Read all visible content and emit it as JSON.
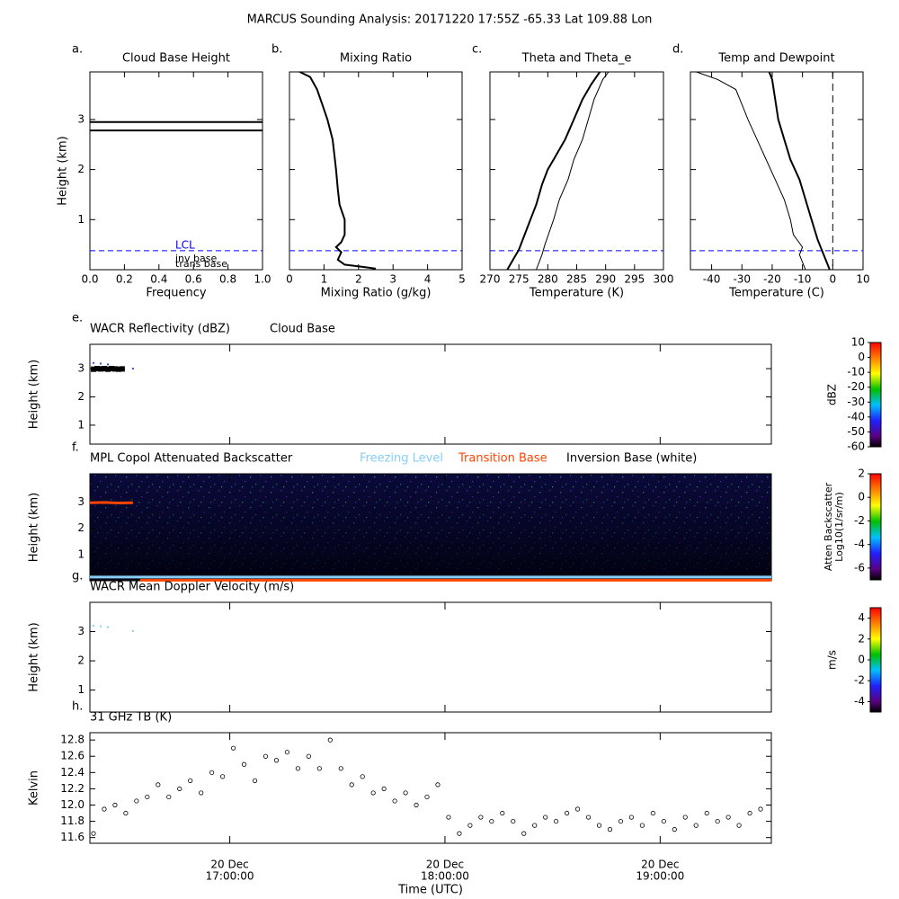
{
  "title": "MARCUS Sounding Analysis: 20171220 17:55Z   -65.33 Lat  109.88 Lon",
  "chart_data": [
    {
      "type": "hlines",
      "label": "a.",
      "title": "Cloud Base Height",
      "xlabel": "Frequency",
      "ylabel": "Height (km)",
      "xlim": [
        0,
        1
      ],
      "xticks": [
        {
          "value": 0,
          "label": "0.0"
        },
        0.2,
        0.4,
        0.6,
        0.8,
        {
          "value": 1,
          "label": "1.0"
        }
      ],
      "ylim": [
        0,
        3.95
      ],
      "yticks": [
        1,
        2,
        3
      ],
      "cloud_base_heights": [
        2.78,
        2.95
      ],
      "lcl": {
        "label": "LCL",
        "value": 0.38,
        "color": "#0000ff"
      },
      "annotations": [
        "inv base",
        "trans base"
      ]
    },
    {
      "type": "profile",
      "label": "b.",
      "title": "Mixing Ratio",
      "xlabel": "Mixing Ratio (g/kg)",
      "xlim": [
        0,
        5
      ],
      "xticks": [
        0,
        1,
        2,
        3,
        4,
        5
      ],
      "ylim": [
        0,
        3.95
      ],
      "yticks": [
        1,
        2,
        3
      ],
      "lcl": {
        "value": 0.38,
        "color": "#0000ff"
      },
      "series": [
        {
          "color": "#000000",
          "width": 2,
          "x": [
            2.5,
            2.2,
            1.6,
            1.4,
            1.5,
            1.35,
            1.5,
            1.6,
            1.6,
            1.45,
            1.4,
            1.35,
            1.3,
            1.25,
            1.1,
            0.95,
            0.8,
            0.6,
            0.3
          ],
          "y": [
            0.02,
            0.05,
            0.1,
            0.2,
            0.35,
            0.45,
            0.55,
            0.7,
            1.0,
            1.3,
            1.6,
            2.0,
            2.3,
            2.6,
            3.0,
            3.3,
            3.6,
            3.85,
            3.95
          ]
        }
      ]
    },
    {
      "type": "profile",
      "label": "c.",
      "title": "Theta and Theta_e",
      "xlabel": "Temperature (K)",
      "xlim": [
        270,
        300
      ],
      "xticks": [
        270,
        275,
        280,
        285,
        290,
        295,
        300
      ],
      "ylim": [
        0,
        3.95
      ],
      "yticks": [
        1,
        2,
        3
      ],
      "lcl": {
        "value": 0.38,
        "color": "#0000ff"
      },
      "series": [
        {
          "color": "#000000",
          "width": 2,
          "x": [
            273,
            274,
            275,
            276,
            277,
            278,
            279,
            280,
            281,
            283,
            284.5,
            286,
            287.5,
            289
          ],
          "y": [
            0,
            0.2,
            0.4,
            0.7,
            1.0,
            1.3,
            1.7,
            2.0,
            2.2,
            2.6,
            3.0,
            3.4,
            3.7,
            3.95
          ]
        },
        {
          "color": "#000000",
          "width": 1,
          "x": [
            278,
            279,
            279.5,
            281,
            282,
            283.5,
            284.5,
            286,
            287,
            288,
            289.5,
            290.5
          ],
          "y": [
            0,
            0.3,
            0.5,
            1.0,
            1.4,
            1.8,
            2.2,
            2.6,
            3.0,
            3.4,
            3.8,
            3.95
          ]
        }
      ]
    },
    {
      "type": "profile",
      "label": "d.",
      "title": "Temp and Dewpoint",
      "xlabel": "Temperature (C)",
      "xlim": [
        -47,
        10
      ],
      "xticks": [
        -40,
        -30,
        -20,
        -10,
        0,
        10
      ],
      "ylim": [
        0,
        3.95
      ],
      "yticks": [
        1,
        2,
        3
      ],
      "lcl": {
        "value": 0.38,
        "color": "#0000ff"
      },
      "vline": 0,
      "series": [
        {
          "color": "#000000",
          "width": 2,
          "x": [
            -1,
            -3,
            -5,
            -7,
            -9,
            -11,
            -14,
            -16,
            -18,
            -19,
            -20,
            -21
          ],
          "y": [
            0,
            0.3,
            0.6,
            1.0,
            1.4,
            1.8,
            2.2,
            2.6,
            3.0,
            3.4,
            3.8,
            3.95
          ]
        },
        {
          "color": "#000000",
          "width": 1,
          "x": [
            -9,
            -11,
            -10,
            -13,
            -14,
            -16,
            -19,
            -22,
            -25,
            -28,
            -30,
            -32,
            -38,
            -45
          ],
          "y": [
            0,
            0.3,
            0.45,
            0.7,
            1.0,
            1.4,
            1.8,
            2.2,
            2.6,
            3.0,
            3.3,
            3.6,
            3.8,
            3.95
          ]
        }
      ]
    },
    {
      "type": "timeheight",
      "label": "e.",
      "title": "WACR Reflectivity (dBZ)",
      "ylabel": "Height (km)",
      "xlim": [
        "16:21",
        "19:31"
      ],
      "ylim": [
        0.33,
        3.86
      ],
      "yticks": [
        1,
        2,
        3
      ],
      "colorbar": {
        "label": "dBZ",
        "lim": [
          -60,
          10
        ],
        "ticks": [
          10,
          0,
          -10,
          -20,
          -30,
          -40,
          -50,
          -60
        ]
      },
      "series": [
        {
          "name": "Cloud Base",
          "color": "#000000",
          "marker": "dot",
          "x": [
            "16:22",
            "16:23",
            "16:24",
            "16:25",
            "16:26",
            "16:27",
            "16:28",
            "16:29",
            "16:30"
          ],
          "values": [
            2.98,
            3.0,
            2.99,
            3.0,
            2.98,
            3.0,
            2.99,
            2.98,
            2.99
          ]
        },
        {
          "color": "#3050ff",
          "marker": "speck",
          "x": [
            "16:22",
            "16:24",
            "16:26",
            "16:33"
          ],
          "values": [
            3.2,
            3.18,
            3.15,
            3.0
          ]
        }
      ]
    },
    {
      "type": "timeheight",
      "label": "f.",
      "title": "MPL Copol Attenuated Backscatter",
      "image": true,
      "xlim": [
        "16:21",
        "19:31"
      ],
      "ylim": [
        0,
        4.07
      ],
      "yticks": [
        1,
        2,
        3
      ],
      "ylabel": "Height (km)",
      "colorbar": {
        "label": [
          "Atten Backscatter",
          "Log10(1/sr/m)"
        ],
        "lim": [
          -7,
          2
        ],
        "ticks": [
          2,
          0,
          -2,
          -4,
          -6
        ]
      },
      "series": [
        {
          "name": "Freezing Level",
          "color": "#87cefa",
          "marker": "line",
          "x": [
            "16:21",
            "19:31"
          ],
          "values": [
            0.14,
            0.14
          ]
        },
        {
          "name": "Transition Base",
          "color": "#ff4500",
          "marker": "line",
          "x": [
            "16:21",
            "16:25",
            "16:29",
            "16:33",
            "16:34",
            "16:35",
            "19:31"
          ],
          "values": [
            2.97,
            2.98,
            2.96,
            2.97,
            null,
            0.02,
            0.02
          ]
        },
        {
          "name": "Inversion Base (white)",
          "color": "#ffffff",
          "marker": "line",
          "x": [],
          "values": []
        }
      ]
    },
    {
      "type": "timeheight",
      "label": "g.",
      "title": "WACR Mean Doppler Velocity (m/s)",
      "ylabel": "Height (km)",
      "xlim": [
        "16:21",
        "19:31"
      ],
      "ylim": [
        0.25,
        4.0
      ],
      "yticks": [
        1,
        2,
        3
      ],
      "colorbar": {
        "label": "m/s",
        "lim": [
          -5,
          5
        ],
        "ticks": [
          4,
          2,
          0,
          -2,
          -4
        ]
      },
      "series": [
        {
          "color": "#87cefa",
          "marker": "speck",
          "x": [
            "16:22",
            "16:24",
            "16:26",
            "16:33"
          ],
          "values": [
            3.2,
            3.18,
            3.15,
            3.02
          ]
        }
      ]
    },
    {
      "type": "scatter",
      "label": "h.",
      "title": "31 GHz TB (K)",
      "ylabel": "Kelvin",
      "xlabel": "Time (UTC)",
      "xlim": [
        "16:21",
        "19:31"
      ],
      "xticks": [
        {
          "value": "17:00",
          "label": [
            "20 Dec",
            "17:00:00"
          ]
        },
        {
          "value": "18:00",
          "label": [
            "20 Dec",
            "18:00:00"
          ]
        },
        {
          "value": "19:00",
          "label": [
            "20 Dec",
            "19:00:00"
          ]
        }
      ],
      "ylim": [
        11.53,
        12.89
      ],
      "yticks": [
        11.6,
        11.8,
        {
          "value": 12,
          "label": "12.0"
        },
        12.2,
        12.4,
        12.6,
        12.8
      ],
      "color": "#000000",
      "x": [
        "16:22",
        "16:25",
        "16:28",
        "16:31",
        "16:34",
        "16:37",
        "16:40",
        "16:43",
        "16:46",
        "16:49",
        "16:52",
        "16:55",
        "16:58",
        "17:01",
        "17:04",
        "17:07",
        "17:10",
        "17:13",
        "17:16",
        "17:19",
        "17:22",
        "17:25",
        "17:28",
        "17:31",
        "17:34",
        "17:37",
        "17:40",
        "17:43",
        "17:46",
        "17:49",
        "17:52",
        "17:55",
        "17:58",
        "18:01",
        "18:04",
        "18:07",
        "18:10",
        "18:13",
        "18:16",
        "18:19",
        "18:22",
        "18:25",
        "18:28",
        "18:31",
        "18:34",
        "18:37",
        "18:40",
        "18:43",
        "18:46",
        "18:49",
        "18:52",
        "18:55",
        "18:58",
        "19:01",
        "19:04",
        "19:07",
        "19:10",
        "19:13",
        "19:16",
        "19:19",
        "19:22",
        "19:25",
        "19:28"
      ],
      "values": [
        11.65,
        11.95,
        12.0,
        11.9,
        12.05,
        12.1,
        12.25,
        12.1,
        12.2,
        12.3,
        12.15,
        12.4,
        12.35,
        12.7,
        12.5,
        12.3,
        12.6,
        12.55,
        12.65,
        12.45,
        12.6,
        12.45,
        12.8,
        12.45,
        12.25,
        12.35,
        12.15,
        12.2,
        12.05,
        12.15,
        12.0,
        12.1,
        12.25,
        11.85,
        11.65,
        11.75,
        11.85,
        11.8,
        11.9,
        11.8,
        11.65,
        11.75,
        11.85,
        11.8,
        11.9,
        11.95,
        11.85,
        11.75,
        11.7,
        11.8,
        11.85,
        11.75,
        11.9,
        11.8,
        11.7,
        11.85,
        11.75,
        11.9,
        11.8,
        11.85,
        11.75,
        11.9,
        11.95
      ]
    }
  ]
}
